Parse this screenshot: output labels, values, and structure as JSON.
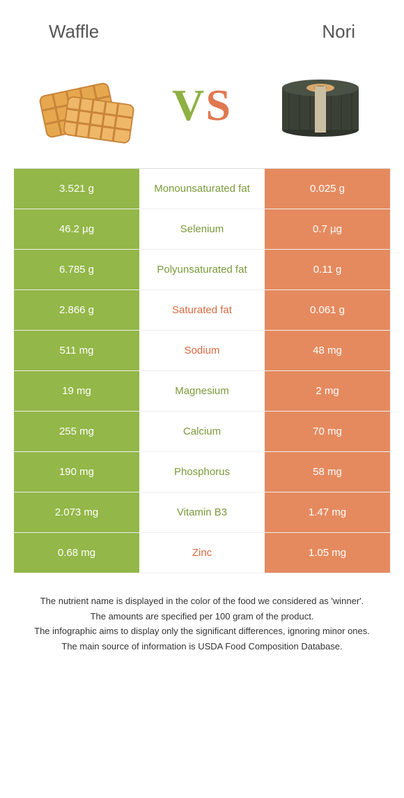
{
  "colors": {
    "green": "#93b748",
    "orange": "#e58a5f",
    "green_text": "#7a9a3a",
    "orange_text": "#d46a3f",
    "waffle_fill": "#e6a84f",
    "waffle_dark": "#c9853a",
    "nori_dark": "#3a4036",
    "nori_core": "#d9a86b"
  },
  "header": {
    "left_title": "Waffle",
    "right_title": "Nori",
    "vs_v": "V",
    "vs_s": "S"
  },
  "rows": [
    {
      "left": "3.521 g",
      "label": "Monounsaturated fat",
      "right": "0.025 g",
      "winner": "left"
    },
    {
      "left": "46.2 µg",
      "label": "Selenium",
      "right": "0.7 µg",
      "winner": "left"
    },
    {
      "left": "6.785 g",
      "label": "Polyunsaturated fat",
      "right": "0.11 g",
      "winner": "left"
    },
    {
      "left": "2.866 g",
      "label": "Saturated fat",
      "right": "0.061 g",
      "winner": "right"
    },
    {
      "left": "511 mg",
      "label": "Sodium",
      "right": "48 mg",
      "winner": "right"
    },
    {
      "left": "19 mg",
      "label": "Magnesium",
      "right": "2 mg",
      "winner": "left"
    },
    {
      "left": "255 mg",
      "label": "Calcium",
      "right": "70 mg",
      "winner": "left"
    },
    {
      "left": "190 mg",
      "label": "Phosphorus",
      "right": "58 mg",
      "winner": "left"
    },
    {
      "left": "2.073 mg",
      "label": "Vitamin B3",
      "right": "1.47 mg",
      "winner": "left"
    },
    {
      "left": "0.68 mg",
      "label": "Zinc",
      "right": "1.05 mg",
      "winner": "right"
    }
  ],
  "footnotes": [
    "The nutrient name is displayed in the color of the food we considered as 'winner'.",
    "The amounts are specified per 100 gram of the product.",
    "The infographic aims to display only the significant differences, ignoring minor ones.",
    "The main source of information is USDA Food Composition Database."
  ]
}
